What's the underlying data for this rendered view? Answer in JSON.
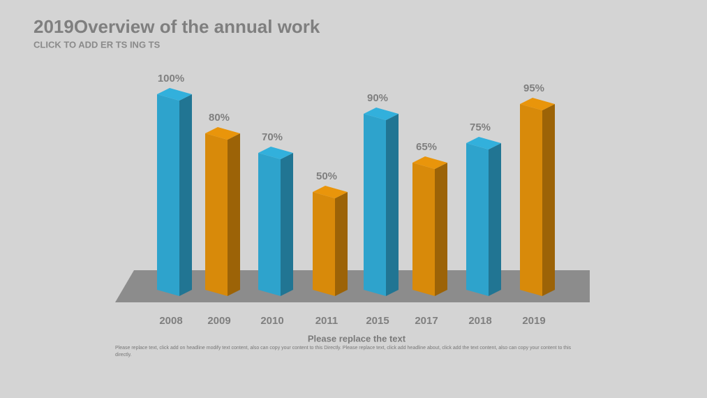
{
  "chart_data": {
    "type": "bar",
    "title": "2019Overview of the annual work",
    "subtitle": "CLICK TO ADD ER TS ING TS",
    "categories": [
      "2008",
      "2009",
      "2010",
      "2011",
      "2015",
      "2017",
      "2018",
      "2019"
    ],
    "values": [
      100,
      80,
      70,
      50,
      90,
      65,
      75,
      95
    ],
    "value_labels": [
      "100%",
      "80%",
      "70%",
      "50%",
      "90%",
      "65%",
      "75%",
      "95%"
    ],
    "colors": [
      "#2ea3cc",
      "#d88a0a",
      "#2ea3cc",
      "#d88a0a",
      "#2ea3cc",
      "#d88a0a",
      "#2ea3cc",
      "#d88a0a"
    ],
    "footer_title": "Please replace the text",
    "footer_text": "Please replace text, click add on headline modify text content, also can copy your content to this Directly. Please replace text, click add headline about, click add the text content, also can copy your content to this directly."
  }
}
